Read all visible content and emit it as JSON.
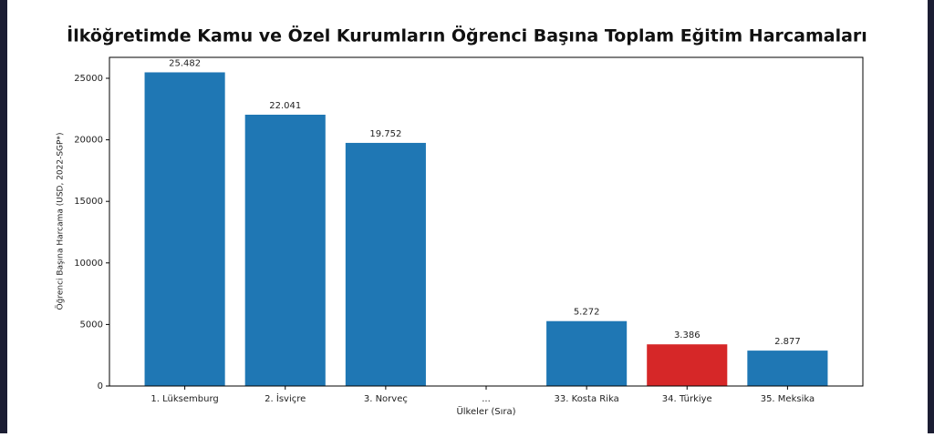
{
  "chart_data": {
    "type": "bar",
    "title": "İlköğretimde Kamu ve Özel Kurumların Öğrenci Başına Toplam Eğitim Harcamaları",
    "xlabel": "Ülkeler (Sıra)",
    "ylabel": "Öğrenci Başına Harcama (USD, 2022-SGP*)",
    "categories": [
      "1. Lüksemburg",
      "2. İsviçre",
      "3. Norveç",
      "...",
      "33. Kosta Rika",
      "34. Türkiye",
      "35. Meksika"
    ],
    "values": [
      25482,
      22041,
      19752,
      null,
      5272,
      3386,
      2877
    ],
    "value_labels": [
      "25.482",
      "22.041",
      "19.752",
      null,
      "5.272",
      "3.386",
      "2.877"
    ],
    "colors": [
      "#1f77b4",
      "#1f77b4",
      "#1f77b4",
      "#1f77b4",
      "#1f77b4",
      "#d62728",
      "#1f77b4"
    ],
    "ylim": [
      0,
      26700
    ],
    "yticks": [
      0,
      5000,
      10000,
      15000,
      20000,
      25000
    ]
  }
}
